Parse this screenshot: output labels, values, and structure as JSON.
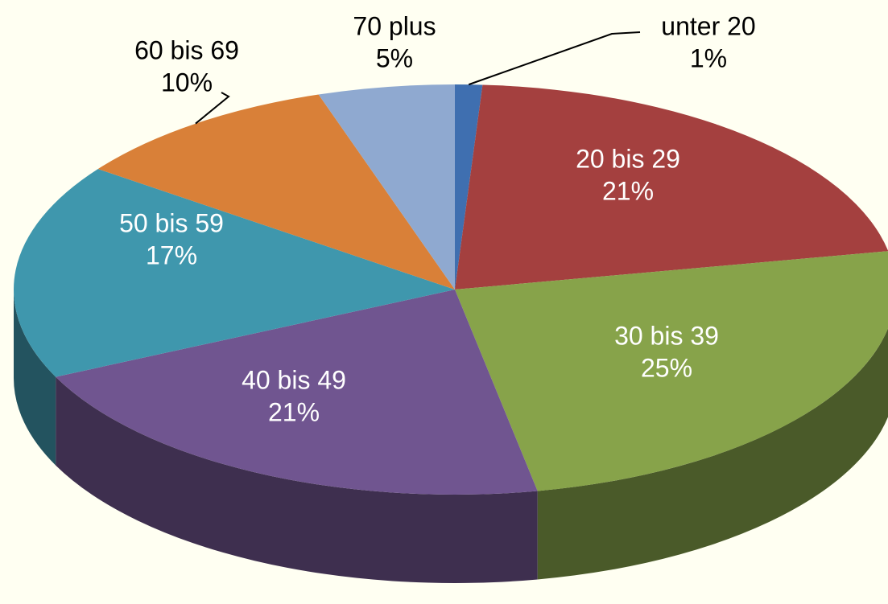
{
  "chart_data": {
    "type": "pie",
    "categories": [
      "unter 20",
      "20 bis 29",
      "30 bis 39",
      "40 bis 49",
      "50 bis 59",
      "60 bis 69",
      "70 plus"
    ],
    "values": [
      1,
      21,
      25,
      21,
      17,
      10,
      5
    ],
    "value_labels": [
      "1%",
      "21%",
      "25%",
      "21%",
      "17%",
      "10%",
      "5%"
    ],
    "colors": [
      "#3f6fb0",
      "#a4403f",
      "#87a34a",
      "#705590",
      "#3f97ad",
      "#d98038",
      "#8fa9d0"
    ]
  }
}
